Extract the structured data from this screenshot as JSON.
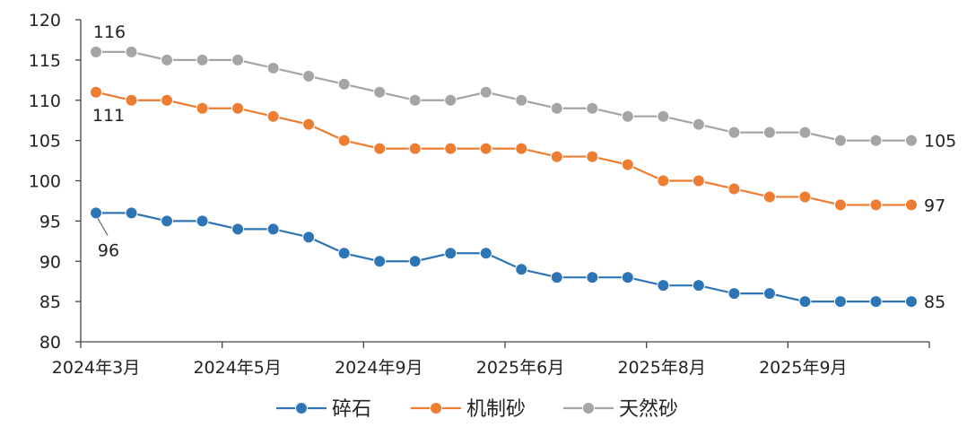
{
  "chart_data": {
    "type": "line",
    "title": "",
    "xlabel": "",
    "ylabel": "",
    "ylim": [
      80,
      120
    ],
    "yticks": [
      80,
      85,
      90,
      95,
      100,
      105,
      110,
      115,
      120
    ],
    "x_tick_labels": [
      "2024年3月",
      "2024年5月",
      "2024年9月",
      "2025年6月",
      "2025年8月",
      "2025年9月"
    ],
    "grid": false,
    "legend_position": "bottom",
    "series": [
      {
        "name": "碎石",
        "color": "#2e75b6",
        "values": [
          96,
          96,
          95,
          95,
          94,
          94,
          93,
          91,
          90,
          90,
          91,
          91,
          89,
          88,
          88,
          88,
          87,
          87,
          86,
          86,
          85,
          85,
          85,
          85
        ]
      },
      {
        "name": "机制砂",
        "color": "#ed7d31",
        "values": [
          111,
          110,
          110,
          109,
          109,
          108,
          107,
          105,
          104,
          104,
          104,
          104,
          104,
          103,
          103,
          102,
          100,
          100,
          99,
          98,
          98,
          97,
          97,
          97
        ]
      },
      {
        "name": "天然砂",
        "color": "#a5a5a5",
        "values": [
          116,
          116,
          115,
          115,
          115,
          114,
          113,
          112,
          111,
          110,
          110,
          111,
          110,
          109,
          109,
          108,
          108,
          107,
          106,
          106,
          106,
          105,
          105,
          105
        ]
      }
    ],
    "annotations": [
      {
        "series": 2,
        "index": 0,
        "text": "116",
        "pos": "above"
      },
      {
        "series": 1,
        "index": 0,
        "text": "111",
        "pos": "below"
      },
      {
        "series": 0,
        "index": 0,
        "text": "96",
        "pos": "below-leader"
      },
      {
        "series": 2,
        "index": 23,
        "text": "105",
        "pos": "right"
      },
      {
        "series": 1,
        "index": 23,
        "text": "97",
        "pos": "right"
      },
      {
        "series": 0,
        "index": 23,
        "text": "85",
        "pos": "right"
      }
    ]
  }
}
